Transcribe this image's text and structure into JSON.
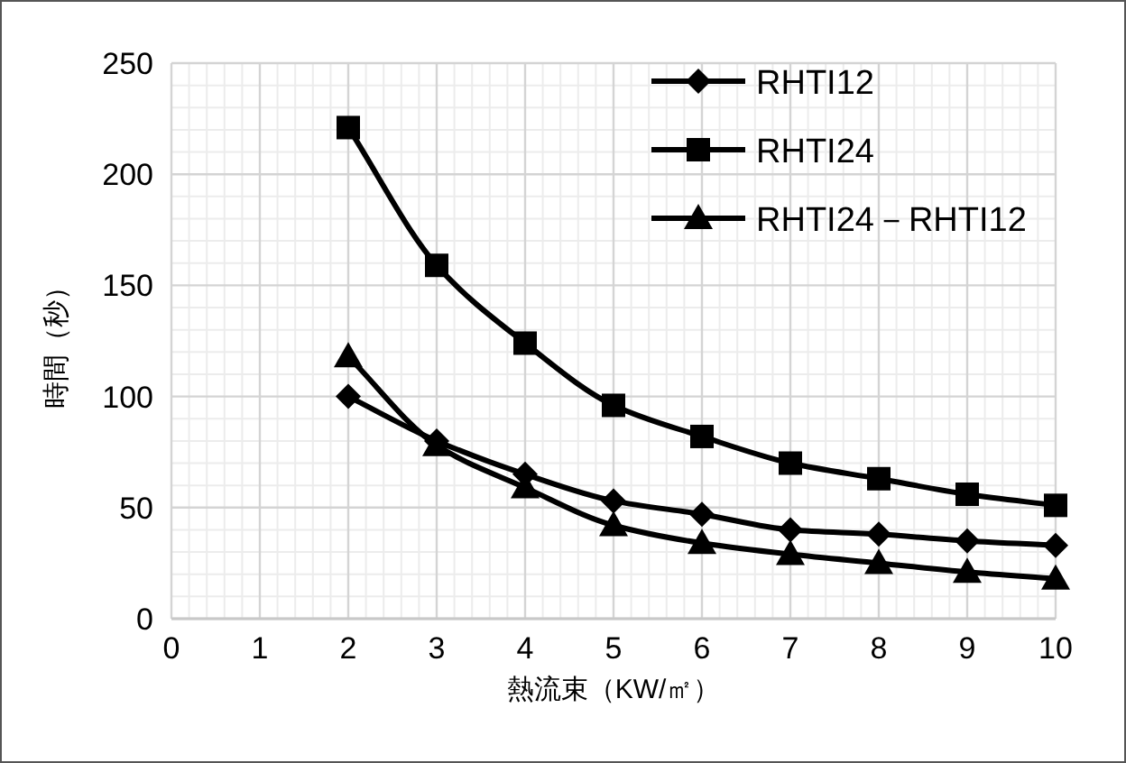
{
  "chart_data": {
    "type": "line",
    "xlabel": "熱流束（KW/㎡）",
    "ylabel": "時間（秒）",
    "x": [
      2,
      3,
      4,
      5,
      6,
      7,
      8,
      9,
      10
    ],
    "series": [
      {
        "name": "RHTI12",
        "color": "#000000",
        "marker": "diamond",
        "values": [
          100,
          80,
          65,
          53,
          47,
          40,
          38,
          35,
          33
        ]
      },
      {
        "name": "RHTI24",
        "color": "#000000",
        "marker": "square",
        "values": [
          221,
          159,
          124,
          96,
          82,
          70,
          63,
          56,
          51
        ]
      },
      {
        "name": "RHTI24－RHTI12",
        "color": "#000000",
        "marker": "triangle",
        "values": [
          118,
          78,
          59,
          42,
          34,
          29,
          25,
          21,
          18
        ]
      }
    ],
    "xlim": [
      0,
      10
    ],
    "xticks": [
      0,
      1,
      2,
      3,
      4,
      5,
      6,
      7,
      8,
      9,
      10
    ],
    "ylim": [
      0,
      250
    ],
    "yticks": [
      0,
      50,
      100,
      150,
      200,
      250
    ],
    "grid": true,
    "legend": "top right",
    "line_style": "solid"
  }
}
